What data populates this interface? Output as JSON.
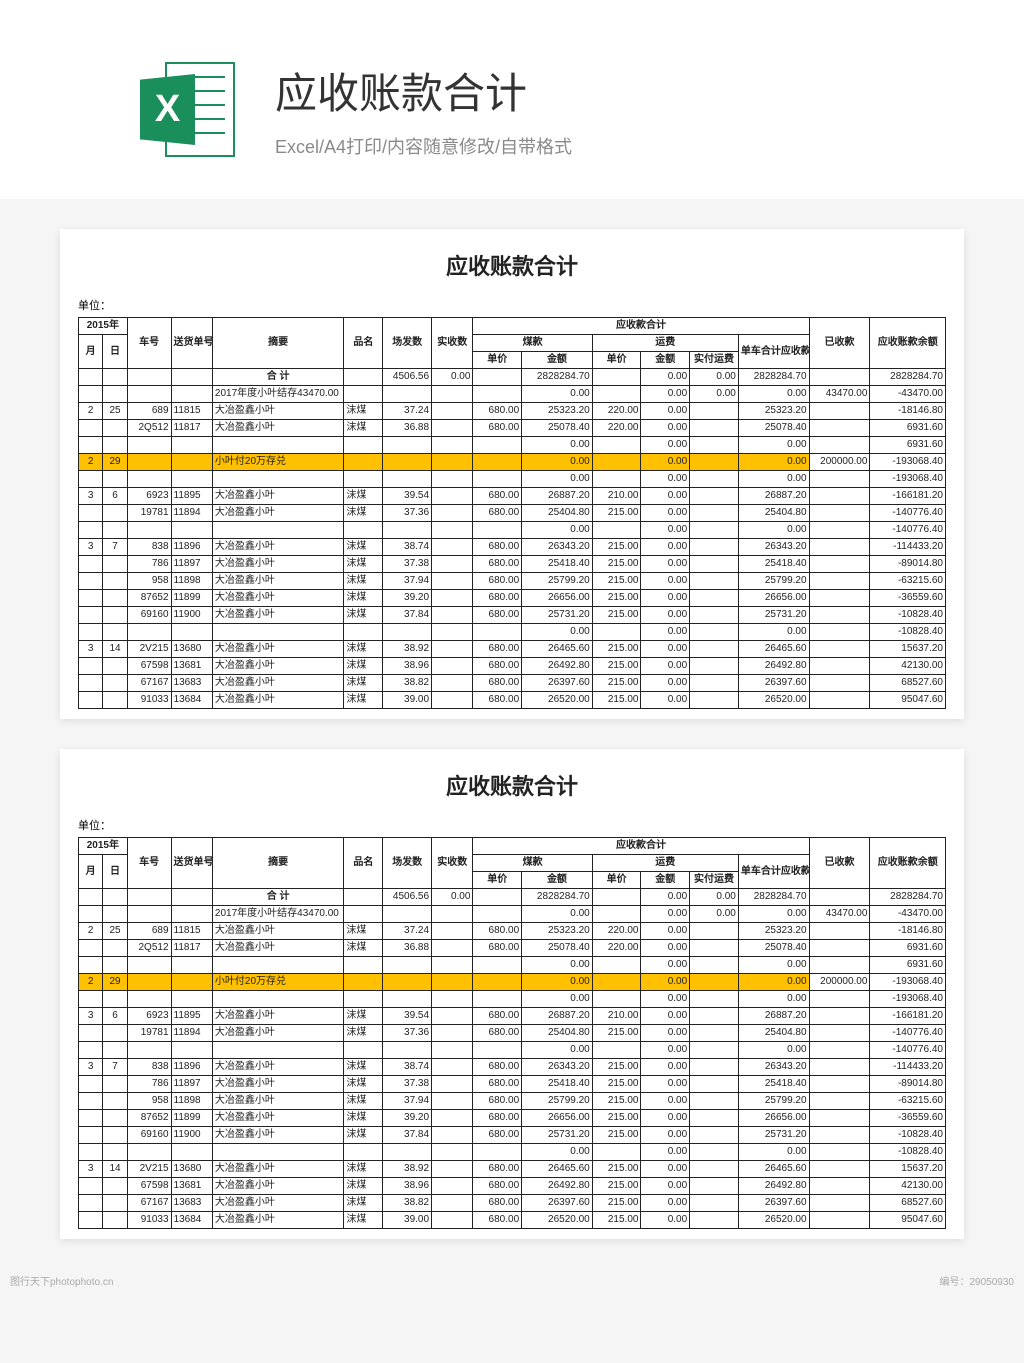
{
  "header": {
    "icon_letter": "X",
    "icon_color": "#1a8f5c",
    "title": "应收账款合计",
    "subtitle": "Excel/A4打印/内容随意修改/自带格式"
  },
  "sheet": {
    "title": "应收账款合计",
    "unit_label": "单位：",
    "highlight_color": "#ffc000",
    "border_color": "#222222",
    "font_size": 10,
    "columns": {
      "year": "2015年",
      "month": "月",
      "day": "日",
      "car_no": "车号",
      "ship_no": "送货单号",
      "summary": "摘要",
      "product": "品名",
      "sent_qty": "场发数",
      "recv_qty": "实收数",
      "receivable_total": "应收款合计",
      "coal": "煤款",
      "freight": "运费",
      "unit_price": "单价",
      "amount": "金额",
      "actual_freight": "实付运费",
      "per_car_recv": "单车合计应收款",
      "received": "已收款",
      "balance": "应收账款余额"
    },
    "total_row": {
      "summary": "合  计",
      "sent_qty": "4506.56",
      "recv_qty": "0.00",
      "coal_amount": "2828284.70",
      "freight_amount": "0.00",
      "actual_freight": "0.00",
      "per_car_recv": "2828284.70",
      "balance": "2828284.70"
    },
    "rows": [
      {
        "m": "",
        "d": "",
        "car": "",
        "sn": "",
        "summary": "2017年度小叶结存43470.00",
        "pn": "",
        "cf": "",
        "ss": "",
        "u1": "",
        "a1": "0.00",
        "u2": "",
        "a2": "0.00",
        "sf": "0.00",
        "dc": "0.00",
        "ys": "43470.00",
        "bal": "-43470.00",
        "hl": false
      },
      {
        "m": "2",
        "d": "25",
        "car": "689",
        "sn": "11815",
        "summary": "大冶盈鑫小叶",
        "pn": "沫煤",
        "cf": "37.24",
        "ss": "",
        "u1": "680.00",
        "a1": "25323.20",
        "u2": "220.00",
        "a2": "0.00",
        "sf": "",
        "dc": "25323.20",
        "ys": "",
        "bal": "-18146.80",
        "hl": false
      },
      {
        "m": "",
        "d": "",
        "car": "2Q512",
        "sn": "11817",
        "summary": "大冶盈鑫小叶",
        "pn": "沫煤",
        "cf": "36.88",
        "ss": "",
        "u1": "680.00",
        "a1": "25078.40",
        "u2": "220.00",
        "a2": "0.00",
        "sf": "",
        "dc": "25078.40",
        "ys": "",
        "bal": "6931.60",
        "hl": false
      },
      {
        "m": "",
        "d": "",
        "car": "",
        "sn": "",
        "summary": "",
        "pn": "",
        "cf": "",
        "ss": "",
        "u1": "",
        "a1": "0.00",
        "u2": "",
        "a2": "0.00",
        "sf": "",
        "dc": "0.00",
        "ys": "",
        "bal": "6931.60",
        "hl": false
      },
      {
        "m": "2",
        "d": "29",
        "car": "",
        "sn": "",
        "summary": "小叶付20万存兑",
        "pn": "",
        "cf": "",
        "ss": "",
        "u1": "",
        "a1": "0.00",
        "u2": "",
        "a2": "0.00",
        "sf": "",
        "dc": "0.00",
        "ys": "200000.00",
        "bal": "-193068.40",
        "hl": true
      },
      {
        "m": "",
        "d": "",
        "car": "",
        "sn": "",
        "summary": "",
        "pn": "",
        "cf": "",
        "ss": "",
        "u1": "",
        "a1": "0.00",
        "u2": "",
        "a2": "0.00",
        "sf": "",
        "dc": "0.00",
        "ys": "",
        "bal": "-193068.40",
        "hl": false
      },
      {
        "m": "3",
        "d": "6",
        "car": "6923",
        "sn": "11895",
        "summary": "大冶盈鑫小叶",
        "pn": "沫煤",
        "cf": "39.54",
        "ss": "",
        "u1": "680.00",
        "a1": "26887.20",
        "u2": "210.00",
        "a2": "0.00",
        "sf": "",
        "dc": "26887.20",
        "ys": "",
        "bal": "-166181.20",
        "hl": false
      },
      {
        "m": "",
        "d": "",
        "car": "19781",
        "sn": "11894",
        "summary": "大冶盈鑫小叶",
        "pn": "沫煤",
        "cf": "37.36",
        "ss": "",
        "u1": "680.00",
        "a1": "25404.80",
        "u2": "215.00",
        "a2": "0.00",
        "sf": "",
        "dc": "25404.80",
        "ys": "",
        "bal": "-140776.40",
        "hl": false
      },
      {
        "m": "",
        "d": "",
        "car": "",
        "sn": "",
        "summary": "",
        "pn": "",
        "cf": "",
        "ss": "",
        "u1": "",
        "a1": "0.00",
        "u2": "",
        "a2": "0.00",
        "sf": "",
        "dc": "0.00",
        "ys": "",
        "bal": "-140776.40",
        "hl": false
      },
      {
        "m": "3",
        "d": "7",
        "car": "838",
        "sn": "11896",
        "summary": "大冶盈鑫小叶",
        "pn": "沫煤",
        "cf": "38.74",
        "ss": "",
        "u1": "680.00",
        "a1": "26343.20",
        "u2": "215.00",
        "a2": "0.00",
        "sf": "",
        "dc": "26343.20",
        "ys": "",
        "bal": "-114433.20",
        "hl": false
      },
      {
        "m": "",
        "d": "",
        "car": "786",
        "sn": "11897",
        "summary": "大冶盈鑫小叶",
        "pn": "沫煤",
        "cf": "37.38",
        "ss": "",
        "u1": "680.00",
        "a1": "25418.40",
        "u2": "215.00",
        "a2": "0.00",
        "sf": "",
        "dc": "25418.40",
        "ys": "",
        "bal": "-89014.80",
        "hl": false
      },
      {
        "m": "",
        "d": "",
        "car": "958",
        "sn": "11898",
        "summary": "大冶盈鑫小叶",
        "pn": "沫煤",
        "cf": "37.94",
        "ss": "",
        "u1": "680.00",
        "a1": "25799.20",
        "u2": "215.00",
        "a2": "0.00",
        "sf": "",
        "dc": "25799.20",
        "ys": "",
        "bal": "-63215.60",
        "hl": false
      },
      {
        "m": "",
        "d": "",
        "car": "87652",
        "sn": "11899",
        "summary": "大冶盈鑫小叶",
        "pn": "沫煤",
        "cf": "39.20",
        "ss": "",
        "u1": "680.00",
        "a1": "26656.00",
        "u2": "215.00",
        "a2": "0.00",
        "sf": "",
        "dc": "26656.00",
        "ys": "",
        "bal": "-36559.60",
        "hl": false
      },
      {
        "m": "",
        "d": "",
        "car": "69160",
        "sn": "11900",
        "summary": "大冶盈鑫小叶",
        "pn": "沫煤",
        "cf": "37.84",
        "ss": "",
        "u1": "680.00",
        "a1": "25731.20",
        "u2": "215.00",
        "a2": "0.00",
        "sf": "",
        "dc": "25731.20",
        "ys": "",
        "bal": "-10828.40",
        "hl": false
      },
      {
        "m": "",
        "d": "",
        "car": "",
        "sn": "",
        "summary": "",
        "pn": "",
        "cf": "",
        "ss": "",
        "u1": "",
        "a1": "0.00",
        "u2": "",
        "a2": "0.00",
        "sf": "",
        "dc": "0.00",
        "ys": "",
        "bal": "-10828.40",
        "hl": false
      },
      {
        "m": "3",
        "d": "14",
        "car": "2V215",
        "sn": "13680",
        "summary": "大冶盈鑫小叶",
        "pn": "沫煤",
        "cf": "38.92",
        "ss": "",
        "u1": "680.00",
        "a1": "26465.60",
        "u2": "215.00",
        "a2": "0.00",
        "sf": "",
        "dc": "26465.60",
        "ys": "",
        "bal": "15637.20",
        "hl": false
      },
      {
        "m": "",
        "d": "",
        "car": "67598",
        "sn": "13681",
        "summary": "大冶盈鑫小叶",
        "pn": "沫煤",
        "cf": "38.96",
        "ss": "",
        "u1": "680.00",
        "a1": "26492.80",
        "u2": "215.00",
        "a2": "0.00",
        "sf": "",
        "dc": "26492.80",
        "ys": "",
        "bal": "42130.00",
        "hl": false
      },
      {
        "m": "",
        "d": "",
        "car": "67167",
        "sn": "13683",
        "summary": "大冶盈鑫小叶",
        "pn": "沫煤",
        "cf": "38.82",
        "ss": "",
        "u1": "680.00",
        "a1": "26397.60",
        "u2": "215.00",
        "a2": "0.00",
        "sf": "",
        "dc": "26397.60",
        "ys": "",
        "bal": "68527.60",
        "hl": false
      },
      {
        "m": "",
        "d": "",
        "car": "91033",
        "sn": "13684",
        "summary": "大冶盈鑫小叶",
        "pn": "沫煤",
        "cf": "39.00",
        "ss": "",
        "u1": "680.00",
        "a1": "26520.00",
        "u2": "215.00",
        "a2": "0.00",
        "sf": "",
        "dc": "26520.00",
        "ys": "",
        "bal": "95047.60",
        "hl": false
      }
    ]
  },
  "watermark": {
    "left": "图行天下photophoto.cn",
    "right": "编号：29050930"
  }
}
